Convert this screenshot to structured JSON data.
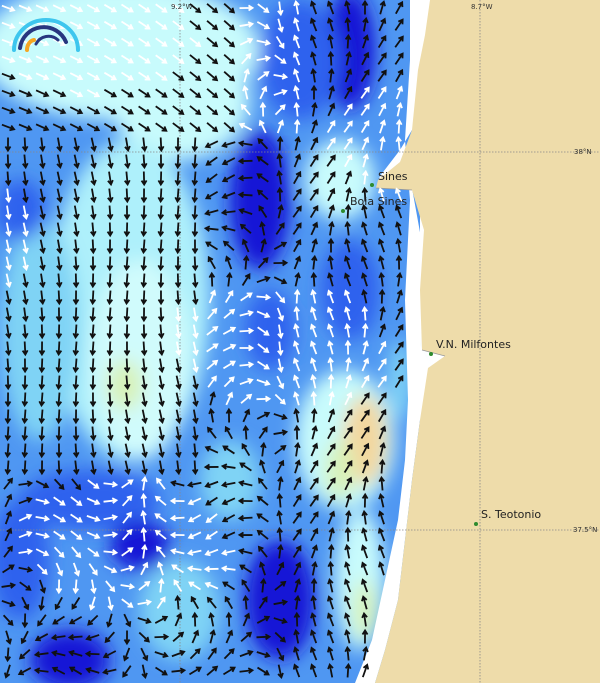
{
  "map": {
    "type": "ocean surface current field",
    "colors": {
      "land": "#eedcaa",
      "no_data": "#ffffff",
      "water_pale": "#c8fbfc",
      "water_light": "#7fd3f5",
      "water_mid": "#4f97f2",
      "water_blue": "#2f62ee",
      "water_deep": "#1414d6",
      "water_green": "#d8f2b8",
      "water_orange": "#f3d79e",
      "site_marker": "#2e8b2e"
    },
    "longitude_labels": [
      "9.2°W",
      "8.7°W"
    ],
    "latitude_labels": [
      "38°N",
      "37.5°N"
    ],
    "places": [
      {
        "name": "Sines"
      },
      {
        "name": "Boia Sines"
      },
      {
        "name": "V.N. Milfontes"
      },
      {
        "name": "S. Teotonio"
      }
    ]
  },
  "logo": {
    "icon": "arc-logo-icon",
    "colors": [
      "#3ec6ee",
      "#27367f",
      "#f5a623"
    ]
  }
}
